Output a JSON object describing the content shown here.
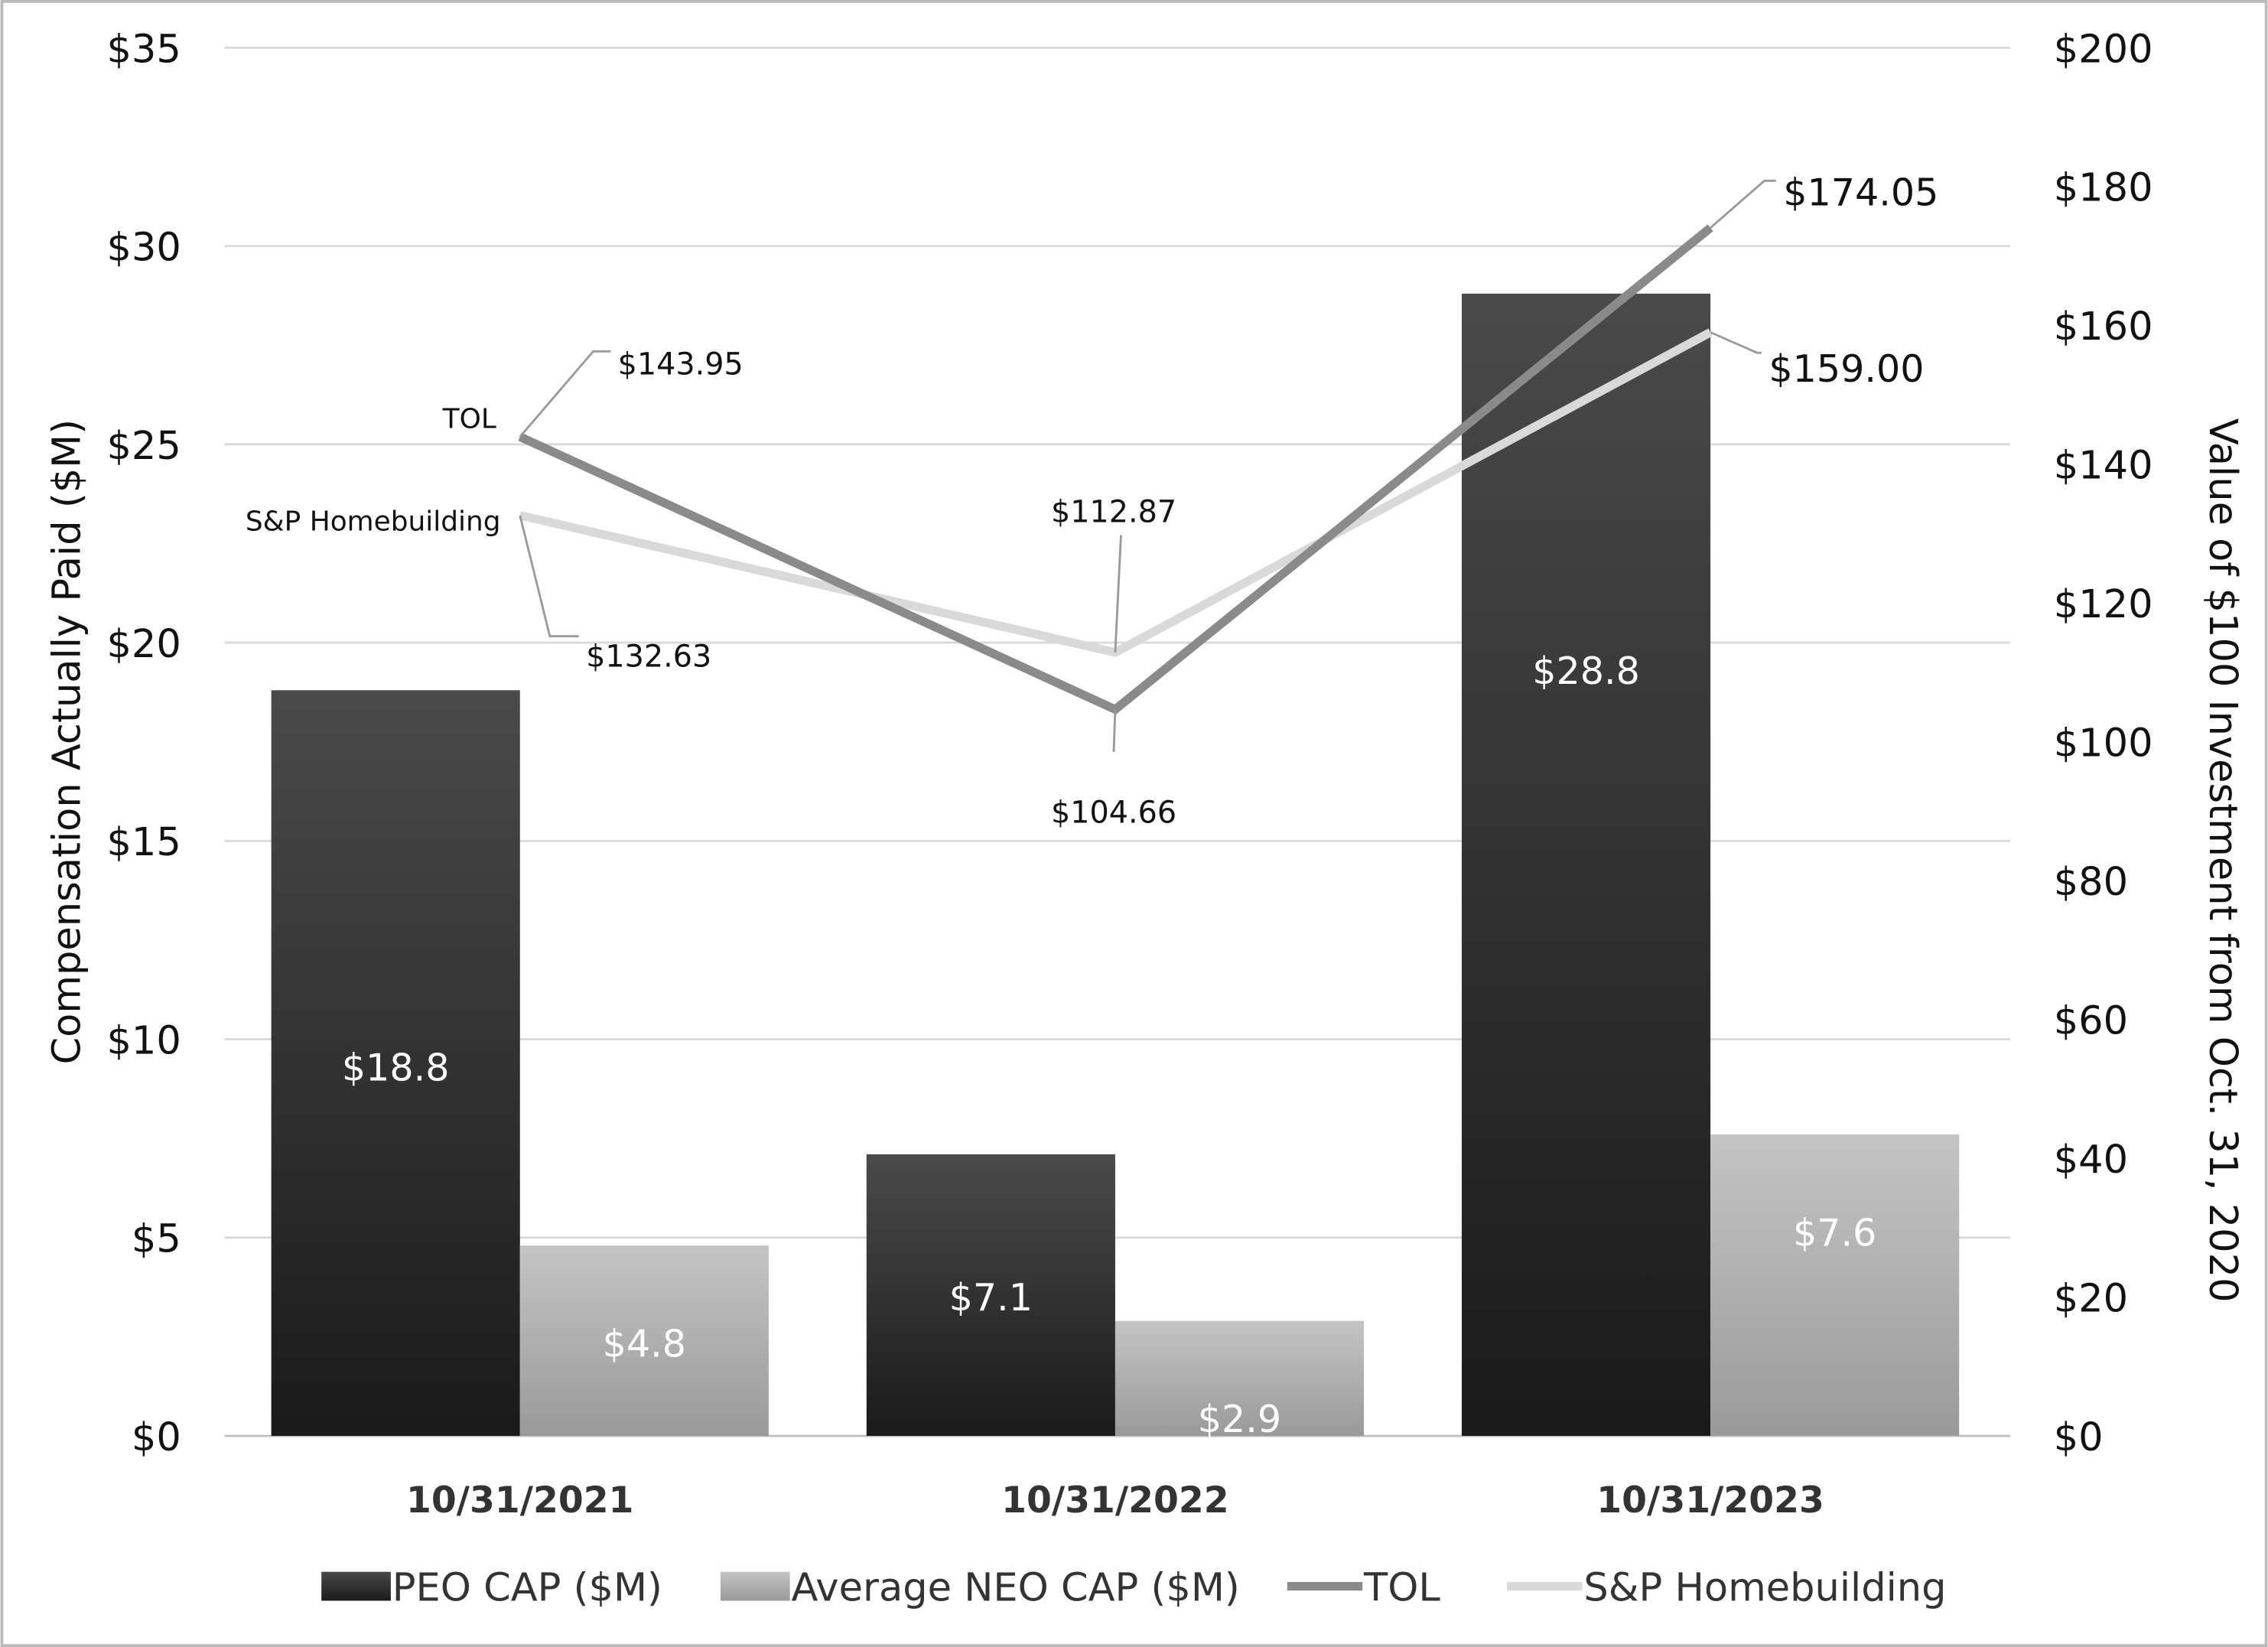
{
  "chart_data": {
    "type": "bar+line",
    "categories": [
      "10/31/2021",
      "10/31/2022",
      "10/31/2023"
    ],
    "bar_series": [
      {
        "name": "PEO CAP ($M)",
        "values": [
          18.8,
          7.1,
          28.8
        ],
        "labels": [
          "$18.8",
          "$7.1",
          "$28.8"
        ],
        "color": "#2a2a2a"
      },
      {
        "name": "Average NEO CAP ($M)",
        "values": [
          4.8,
          2.9,
          7.6
        ],
        "labels": [
          "$4.8",
          "$2.9",
          "$7.6"
        ],
        "color": "#b0b0b0"
      }
    ],
    "line_series": [
      {
        "name": "TOL",
        "values": [
          143.95,
          104.66,
          174.05
        ],
        "labels": [
          "$143.95",
          "$104.66",
          "$174.05"
        ],
        "color": "#8a8a8a",
        "start_label": "TOL"
      },
      {
        "name": "S&P Homebuilding",
        "values": [
          132.63,
          112.87,
          159.0
        ],
        "labels": [
          "$132.63",
          "$112.87",
          "$159.00"
        ],
        "color": "#d9d9d9",
        "start_label": "S&P Homebuilding"
      }
    ],
    "y_left": {
      "label": "Compensation Actually Paid ($M)",
      "lim": [
        0,
        35
      ],
      "ticks": [
        "$0",
        "$5",
        "$10",
        "$15",
        "$20",
        "$25",
        "$30",
        "$35"
      ]
    },
    "y_right": {
      "label": "Value of $100 Investment from Oct. 31, 2020",
      "lim": [
        0,
        200
      ],
      "ticks": [
        "$0",
        "$20",
        "$40",
        "$60",
        "$80",
        "$100",
        "$120",
        "$140",
        "$160",
        "$180",
        "$200"
      ]
    },
    "grid": true,
    "legend_position": "bottom"
  }
}
